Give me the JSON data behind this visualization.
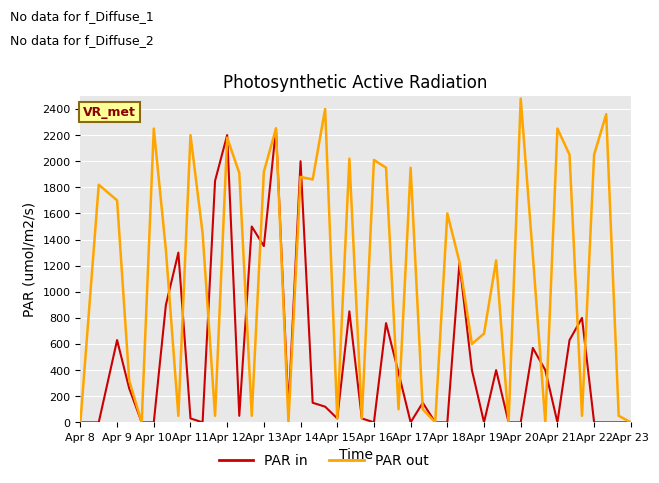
{
  "title": "Photosynthetic Active Radiation",
  "xlabel": "Time",
  "ylabel": "PAR (umol/m2/s)",
  "ylim": [
    0,
    2500
  ],
  "yticks": [
    0,
    200,
    400,
    600,
    800,
    1000,
    1200,
    1400,
    1600,
    1800,
    2000,
    2200,
    2400
  ],
  "text_annotations": [
    "No data for f_Diffuse_1",
    "No data for f_Diffuse_2"
  ],
  "box_label": "VR_met",
  "background_color": "#e8e8e8",
  "par_in_color": "#cc0000",
  "par_out_color": "#ffa500",
  "x_dates": [
    8,
    9,
    10,
    11,
    12,
    13,
    14,
    15,
    16,
    17,
    18,
    19,
    20,
    21,
    22,
    23
  ],
  "par_in_x": [
    8.0,
    8.5,
    9.0,
    9.33,
    9.67,
    10.0,
    10.33,
    10.67,
    11.0,
    11.33,
    11.67,
    12.0,
    12.33,
    12.67,
    13.0,
    13.33,
    13.67,
    14.0,
    14.33,
    14.67,
    15.0,
    15.33,
    15.67,
    16.0,
    16.33,
    16.67,
    17.0,
    17.33,
    17.67,
    18.0,
    18.33,
    18.67,
    19.0,
    19.33,
    19.67,
    20.0,
    20.33,
    20.67,
    21.0,
    21.33,
    21.67,
    22.0,
    22.33,
    22.67,
    23.0
  ],
  "par_in_y": [
    0,
    0,
    630,
    260,
    0,
    0,
    900,
    1300,
    30,
    0,
    1850,
    2200,
    50,
    1500,
    1350,
    2250,
    100,
    2000,
    150,
    120,
    30,
    850,
    30,
    0,
    760,
    380,
    0,
    150,
    0,
    0,
    1220,
    400,
    0,
    400,
    0,
    0,
    570,
    400,
    0,
    630,
    800,
    0,
    0,
    0,
    0
  ],
  "par_out_x": [
    8.0,
    8.5,
    9.0,
    9.33,
    9.67,
    10.0,
    10.33,
    10.67,
    11.0,
    11.33,
    11.67,
    12.0,
    12.33,
    12.67,
    13.0,
    13.33,
    13.67,
    14.0,
    14.33,
    14.67,
    15.0,
    15.33,
    15.67,
    16.0,
    16.33,
    16.67,
    17.0,
    17.33,
    17.67,
    18.0,
    18.33,
    18.67,
    19.0,
    19.33,
    19.67,
    20.0,
    20.33,
    20.67,
    21.0,
    21.33,
    21.67,
    22.0,
    22.33,
    22.67,
    23.0
  ],
  "par_out_y": [
    0,
    1820,
    1700,
    320,
    0,
    2250,
    1320,
    50,
    2200,
    1450,
    50,
    2180,
    1910,
    50,
    1920,
    2250,
    0,
    1880,
    1860,
    2400,
    30,
    2020,
    30,
    2010,
    1950,
    100,
    1950,
    100,
    0,
    1600,
    1230,
    600,
    680,
    1240,
    0,
    2480,
    1280,
    0,
    2250,
    2050,
    50,
    2050,
    2360,
    50,
    0
  ],
  "legend_labels": [
    "PAR in",
    "PAR out"
  ],
  "title_fontsize": 12,
  "axis_label_fontsize": 10,
  "tick_fontsize": 8
}
